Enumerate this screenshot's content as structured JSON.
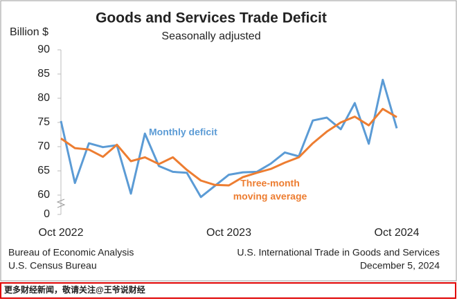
{
  "chart_data": {
    "type": "line",
    "title": "Goods and Services Trade Deficit",
    "subtitle": "Seasonally adjusted",
    "y_label": "Billion $",
    "categories": [
      "Oct 2022",
      null,
      null,
      null,
      null,
      null,
      null,
      null,
      null,
      null,
      null,
      null,
      "Oct 2023",
      null,
      null,
      null,
      null,
      null,
      null,
      null,
      null,
      null,
      null,
      null,
      "Oct 2024"
    ],
    "series": [
      {
        "name": "Monthly deficit",
        "color": "#5b9bd5",
        "values": [
          75.3,
          62.5,
          70.7,
          69.9,
          70.3,
          60.3,
          72.7,
          66.0,
          64.8,
          64.6,
          59.6,
          61.9,
          64.2,
          64.7,
          64.8,
          66.5,
          68.8,
          68.0,
          75.4,
          76.0,
          73.6,
          79.0,
          70.6,
          83.8,
          73.8
        ]
      },
      {
        "name": "Three-month moving average",
        "color": "#ed7d31",
        "values": [
          71.7,
          69.7,
          69.4,
          67.9,
          70.4,
          67.0,
          67.8,
          66.4,
          67.8,
          65.2,
          63.0,
          62.1,
          62.0,
          63.7,
          64.6,
          65.4,
          66.7,
          67.8,
          70.7,
          73.1,
          75.0,
          76.2,
          74.4,
          77.8,
          76.1
        ]
      }
    ],
    "annotations": [
      "Monthly deficit",
      "Three-month",
      "moving average"
    ],
    "ylim": [
      0,
      90
    ],
    "yticks": [
      0,
      60,
      65,
      70,
      75,
      80,
      85,
      90
    ],
    "axis_break": true,
    "sources": [
      "Bureau of Economic Analysis",
      "U.S. Census Bureau"
    ],
    "report": "U.S. International Trade in Goods and Services",
    "date": "December 5, 2024"
  },
  "banner": "更多财经新闻，敬请关注@王爷说财经"
}
